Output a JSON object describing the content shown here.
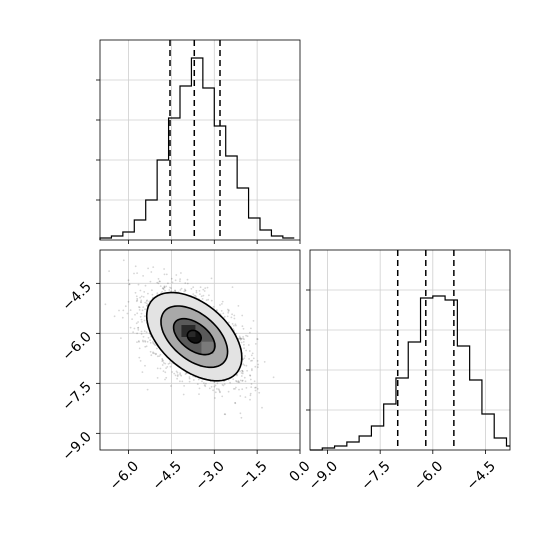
{
  "chart_data": [
    {
      "panel": "top-left",
      "type": "histogram",
      "xlim": [
        -7.0,
        0.0
      ],
      "ylim": [
        0,
        1.0
      ],
      "xticks": [
        -6.0,
        -4.5,
        -3.0,
        -1.5,
        0.0
      ],
      "xtick_labels_shown": false,
      "yticks": [
        0.2,
        0.4,
        0.6,
        0.8
      ],
      "ytick_labels_shown": false,
      "grid": true,
      "bin_edges": [
        -7.0,
        -6.6,
        -6.2,
        -5.8,
        -5.4,
        -5.0,
        -4.6,
        -4.2,
        -3.8,
        -3.4,
        -3.0,
        -2.6,
        -2.2,
        -1.8,
        -1.4,
        -1.0,
        -0.6,
        -0.2
      ],
      "counts": [
        0.01,
        0.02,
        0.04,
        0.1,
        0.2,
        0.4,
        0.61,
        0.77,
        0.91,
        0.76,
        0.57,
        0.42,
        0.26,
        0.11,
        0.05,
        0.02,
        0.01
      ],
      "quantile_lines": [
        -4.55,
        -3.7,
        -2.8
      ]
    },
    {
      "panel": "bottom-left",
      "type": "2d-density-contour",
      "xlim": [
        -7.0,
        0.0
      ],
      "ylim": [
        -9.5,
        -3.5
      ],
      "xticks": [
        -6.0,
        -4.5,
        -3.0,
        -1.5,
        0.0
      ],
      "xtick_labels": [
        "−6.0",
        "−4.5",
        "−3.0",
        "−1.5",
        "0.0"
      ],
      "yticks": [
        -9.0,
        -7.5,
        -6.0,
        -4.5
      ],
      "ytick_labels": [
        "−9.0",
        "−7.5",
        "−6.0",
        "−4.5"
      ],
      "grid": true,
      "center": [
        -3.7,
        -6.1
      ],
      "contour_levels": [
        {
          "sx": 1.85,
          "sy": 1.05,
          "angle_deg": -32
        },
        {
          "sx": 1.3,
          "sy": 0.72,
          "angle_deg": -32
        },
        {
          "sx": 0.8,
          "sy": 0.42,
          "angle_deg": -30
        },
        {
          "sx": 0.25,
          "sy": 0.18,
          "angle_deg": -20
        }
      ]
    },
    {
      "panel": "bottom-right",
      "type": "histogram",
      "xlim": [
        -9.5,
        -3.8
      ],
      "ylim": [
        0,
        1.0
      ],
      "xticks": [
        -9.0,
        -7.5,
        -6.0,
        -4.5
      ],
      "xtick_labels": [
        "−9.0",
        "−7.5",
        "−6.0",
        "−4.5"
      ],
      "yticks": [
        0.2,
        0.4,
        0.6,
        0.8
      ],
      "ytick_labels_shown": false,
      "grid": true,
      "bin_edges": [
        -9.5,
        -9.15,
        -8.8,
        -8.45,
        -8.1,
        -7.75,
        -7.4,
        -7.05,
        -6.7,
        -6.35,
        -6.0,
        -5.65,
        -5.3,
        -4.95,
        -4.6,
        -4.25,
        -3.9,
        -3.8
      ],
      "counts": [
        0.0,
        0.01,
        0.02,
        0.04,
        0.07,
        0.12,
        0.23,
        0.36,
        0.54,
        0.76,
        0.77,
        0.75,
        0.52,
        0.35,
        0.18,
        0.06,
        0.02
      ],
      "quantile_lines": [
        -7.0,
        -6.2,
        -5.4
      ]
    }
  ]
}
